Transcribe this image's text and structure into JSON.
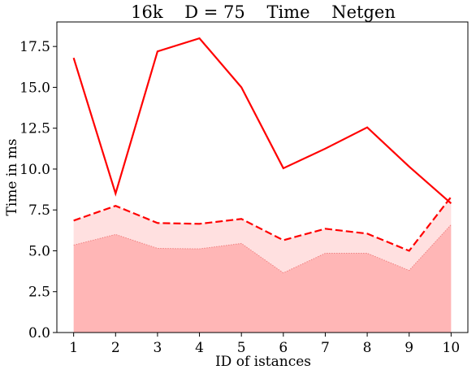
{
  "chart_data": {
    "type": "line",
    "title": "16k    D = 75    Time    Netgen",
    "xlabel": "ID of istances",
    "ylabel": "Time in ms",
    "x": [
      1,
      2,
      3,
      4,
      5,
      6,
      7,
      8,
      9,
      10
    ],
    "ylim": [
      0,
      19
    ],
    "yticks": [
      "0.0",
      "2.5",
      "5.0",
      "7.5",
      "10.0",
      "12.5",
      "15.0",
      "17.5"
    ],
    "grid": false,
    "series": [
      {
        "style": "solid",
        "color": "#ff0000",
        "values": [
          16.8,
          8.5,
          17.2,
          18.0,
          15.0,
          10.05,
          11.25,
          12.55,
          10.15,
          7.9
        ]
      },
      {
        "style": "dashed",
        "color": "#ff0000",
        "values": [
          6.85,
          7.75,
          6.7,
          6.65,
          6.95,
          5.65,
          6.35,
          6.05,
          5.0,
          8.3
        ]
      },
      {
        "style": "area",
        "color": "#ffb6b6",
        "values": [
          5.35,
          6.0,
          5.15,
          5.12,
          5.45,
          3.65,
          4.85,
          4.85,
          3.8,
          6.6
        ]
      }
    ],
    "band": {
      "color": "#ffe0e0",
      "description": ""
    }
  }
}
